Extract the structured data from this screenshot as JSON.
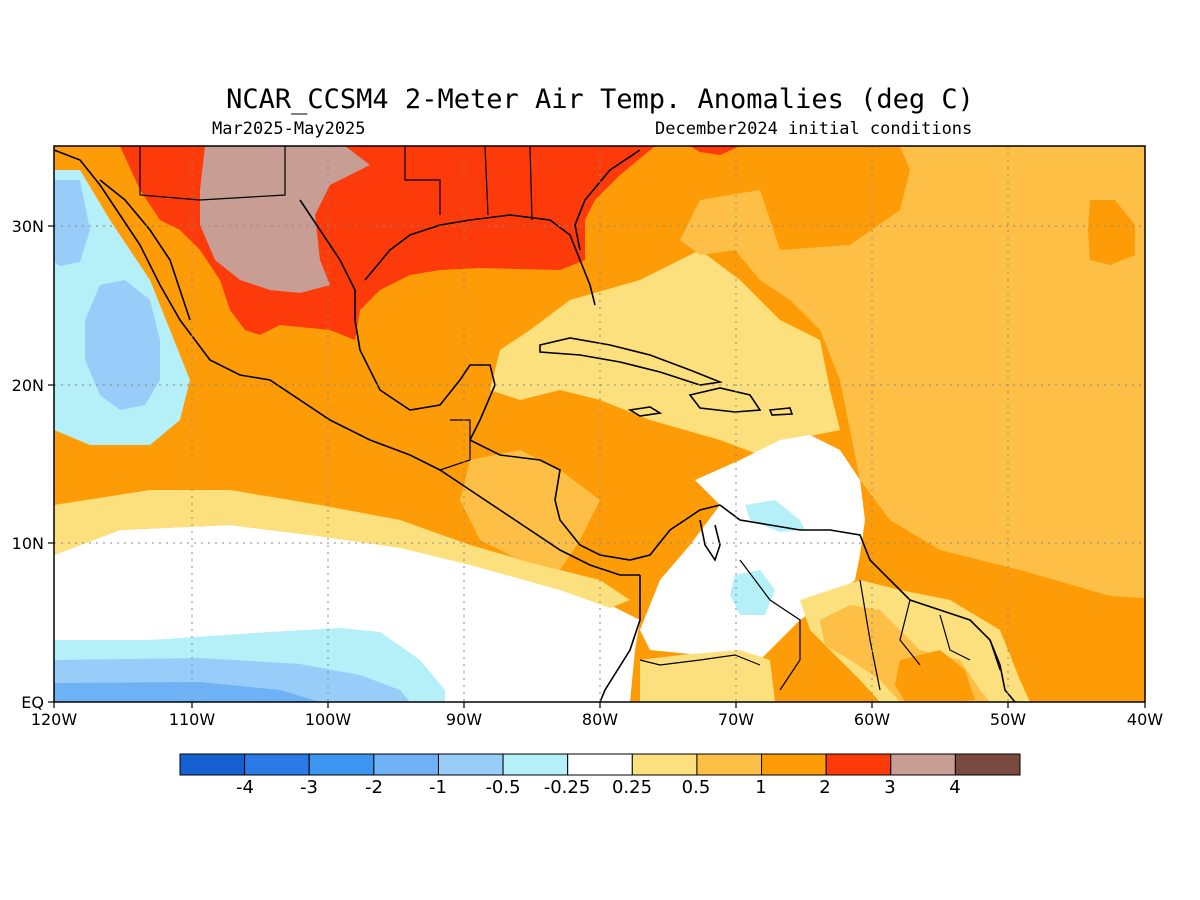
{
  "title": "NCAR_CCSM4 2-Meter Air Temp. Anomalies (deg C)",
  "subtitle_left": "Mar2025-May2025",
  "subtitle_right": "December2024 initial conditions",
  "map": {
    "lat_ticks": [
      "30N",
      "20N",
      "10N",
      "EQ"
    ],
    "lon_ticks": [
      "120W",
      "110W",
      "100W",
      "90W",
      "80W",
      "70W",
      "60W",
      "50W",
      "40W"
    ],
    "extent": {
      "lon_min": -120,
      "lon_max": -40,
      "lat_min": 0,
      "lat_max": 35
    },
    "grid": "dotted"
  },
  "colorbar": {
    "labels": [
      "-4",
      "-3",
      "-2",
      "-1",
      "-0.5",
      "-0.25",
      "0.25",
      "0.5",
      "1",
      "2",
      "3",
      "4"
    ],
    "colors": [
      "#1560d0",
      "#2a7ae8",
      "#3d95f2",
      "#6fb1f5",
      "#99cdf9",
      "#b5f0f9",
      "#ffffff",
      "#fde07e",
      "#fdbf45",
      "#fd9c06",
      "#fd3a0a",
      "#c79d94",
      "#7a4a40"
    ]
  }
}
